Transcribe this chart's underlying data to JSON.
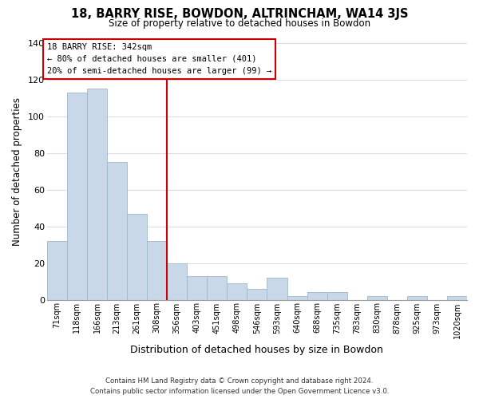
{
  "title1": "18, BARRY RISE, BOWDON, ALTRINCHAM, WA14 3JS",
  "title2": "Size of property relative to detached houses in Bowdon",
  "xlabel": "Distribution of detached houses by size in Bowdon",
  "ylabel": "Number of detached properties",
  "bar_labels": [
    "71sqm",
    "118sqm",
    "166sqm",
    "213sqm",
    "261sqm",
    "308sqm",
    "356sqm",
    "403sqm",
    "451sqm",
    "498sqm",
    "546sqm",
    "593sqm",
    "640sqm",
    "688sqm",
    "735sqm",
    "783sqm",
    "830sqm",
    "878sqm",
    "925sqm",
    "973sqm",
    "1020sqm"
  ],
  "bar_values": [
    32,
    113,
    115,
    75,
    47,
    32,
    20,
    13,
    13,
    9,
    6,
    12,
    2,
    4,
    4,
    0,
    2,
    0,
    2,
    0,
    2
  ],
  "bar_color": "#c8d8e8",
  "bar_edge_color": "#a0b8cc",
  "vline_color": "#cc0000",
  "annotation_title": "18 BARRY RISE: 342sqm",
  "annotation_line1": "← 80% of detached houses are smaller (401)",
  "annotation_line2": "20% of semi-detached houses are larger (99) →",
  "annotation_box_color": "#ffffff",
  "annotation_box_edge": "#cc0000",
  "ylim": [
    0,
    140
  ],
  "yticks": [
    0,
    20,
    40,
    60,
    80,
    100,
    120,
    140
  ],
  "footer1": "Contains HM Land Registry data © Crown copyright and database right 2024.",
  "footer2": "Contains public sector information licensed under the Open Government Licence v3.0.",
  "background_color": "#ffffff",
  "grid_color": "#dddddd"
}
